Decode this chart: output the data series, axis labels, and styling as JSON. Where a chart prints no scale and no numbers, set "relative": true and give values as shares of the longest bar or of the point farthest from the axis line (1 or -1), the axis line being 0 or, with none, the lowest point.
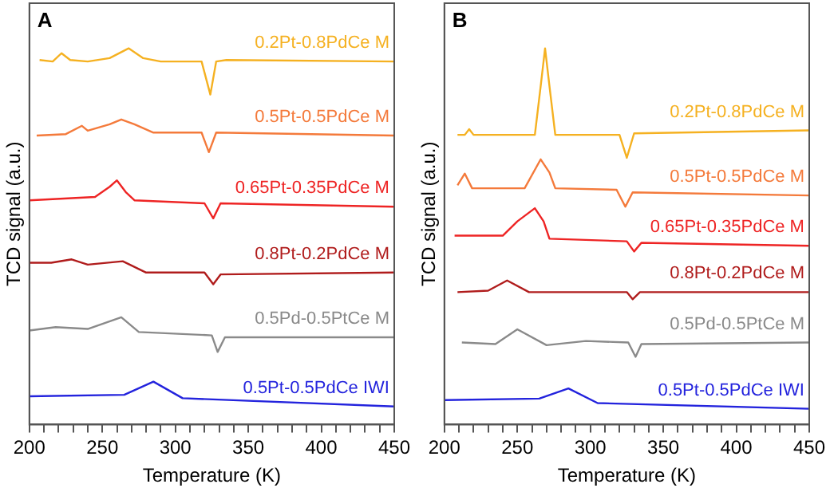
{
  "chart_data": [
    {
      "type": "line",
      "title": "A",
      "xlabel": "Temperature (K)",
      "ylabel": "TCD signal (a.u.)",
      "relative": true,
      "legend": false,
      "marker": "none",
      "grid": false,
      "xlim": [
        200,
        450
      ],
      "xticks": [
        200,
        {
          "value": 210,
          "label": null
        },
        {
          "value": 220,
          "label": null
        },
        {
          "value": 230,
          "label": null
        },
        {
          "value": 240,
          "label": null
        },
        250,
        {
          "value": 260,
          "label": null
        },
        {
          "value": 270,
          "label": null
        },
        {
          "value": 280,
          "label": null
        },
        {
          "value": 290,
          "label": null
        },
        300,
        {
          "value": 310,
          "label": null
        },
        {
          "value": 320,
          "label": null
        },
        {
          "value": 330,
          "label": null
        },
        {
          "value": 340,
          "label": null
        },
        350,
        {
          "value": 360,
          "label": null
        },
        {
          "value": 370,
          "label": null
        },
        {
          "value": 380,
          "label": null
        },
        {
          "value": 390,
          "label": null
        },
        400,
        {
          "value": 410,
          "label": null
        },
        {
          "value": 420,
          "label": null
        },
        {
          "value": 430,
          "label": null
        },
        {
          "value": 440,
          "label": null
        },
        450
      ],
      "series": [
        {
          "name": "0.2Pt-0.8PdCe M",
          "color": "#f5b121",
          "x": [
            207,
            216,
            222,
            228,
            240,
            255,
            268,
            278,
            290,
            318,
            324,
            328,
            335,
            450
          ],
          "values": [
            0.969,
            0.965,
            0.987,
            0.969,
            0.965,
            0.974,
            1.0,
            0.974,
            0.965,
            0.965,
            0.877,
            0.965,
            0.969,
            0.965
          ]
        },
        {
          "name": "0.5Pt-0.5PdCe M",
          "color": "#f47a3b",
          "x": [
            205,
            225,
            236,
            240,
            255,
            263,
            272,
            285,
            318,
            323,
            328,
            450
          ],
          "values": [
            0.768,
            0.772,
            0.794,
            0.781,
            0.798,
            0.811,
            0.798,
            0.776,
            0.776,
            0.724,
            0.776,
            0.768
          ]
        },
        {
          "name": "0.65Pt-0.35PdCe M",
          "color": "#ee2424",
          "x": [
            200,
            245,
            255,
            260,
            266,
            272,
            320,
            326,
            331,
            450
          ],
          "values": [
            0.596,
            0.605,
            0.632,
            0.649,
            0.618,
            0.596,
            0.588,
            0.548,
            0.588,
            0.579
          ]
        },
        {
          "name": "0.8Pt-0.2PdCe M",
          "color": "#b01c1c",
          "x": [
            200,
            215,
            229,
            240,
            264,
            280,
            320,
            326,
            331,
            450
          ],
          "values": [
            0.43,
            0.43,
            0.439,
            0.425,
            0.434,
            0.404,
            0.404,
            0.373,
            0.399,
            0.404
          ]
        },
        {
          "name": "0.5Pd-0.5PtCe M",
          "color": "#8a8a8a",
          "x": [
            200,
            218,
            240,
            263,
            275,
            325,
            329,
            334,
            450
          ],
          "values": [
            0.25,
            0.259,
            0.254,
            0.285,
            0.246,
            0.237,
            0.193,
            0.232,
            0.232
          ]
        },
        {
          "name": "0.5Pt-0.5PdCe IWI",
          "color": "#2323dd",
          "x": [
            200,
            265,
            285,
            305,
            450
          ],
          "values": [
            0.075,
            0.079,
            0.114,
            0.07,
            0.048
          ]
        }
      ]
    },
    {
      "type": "line",
      "title": "B",
      "xlabel": "Temperature (K)",
      "ylabel": "TCD signal (a.u.)",
      "relative": true,
      "legend": false,
      "marker": "none",
      "grid": false,
      "xlim": [
        200,
        450
      ],
      "xticks": [
        200,
        {
          "value": 210,
          "label": null
        },
        {
          "value": 220,
          "label": null
        },
        {
          "value": 230,
          "label": null
        },
        {
          "value": 240,
          "label": null
        },
        250,
        {
          "value": 260,
          "label": null
        },
        {
          "value": 270,
          "label": null
        },
        {
          "value": 280,
          "label": null
        },
        {
          "value": 290,
          "label": null
        },
        300,
        {
          "value": 310,
          "label": null
        },
        {
          "value": 320,
          "label": null
        },
        {
          "value": 330,
          "label": null
        },
        {
          "value": 340,
          "label": null
        },
        350,
        {
          "value": 360,
          "label": null
        },
        {
          "value": 370,
          "label": null
        },
        {
          "value": 380,
          "label": null
        },
        {
          "value": 390,
          "label": null
        },
        400,
        {
          "value": 410,
          "label": null
        },
        {
          "value": 420,
          "label": null
        },
        {
          "value": 430,
          "label": null
        },
        {
          "value": 440,
          "label": null
        },
        450
      ],
      "series": [
        {
          "name": "0.2Pt-0.8PdCe M",
          "color": "#f5b121",
          "x": [
            209,
            214,
            217,
            220,
            262,
            266,
            269,
            272,
            276,
            320,
            325,
            330,
            450
          ],
          "values": [
            0.77,
            0.77,
            0.785,
            0.77,
            0.77,
            0.9,
            1.0,
            0.9,
            0.77,
            0.77,
            0.709,
            0.774,
            0.782
          ]
        },
        {
          "name": "0.5Pt-0.5PdCe M",
          "color": "#f47a3b",
          "x": [
            209,
            214,
            219,
            255,
            266,
            272,
            276,
            318,
            324,
            329,
            450
          ],
          "values": [
            0.636,
            0.667,
            0.628,
            0.628,
            0.705,
            0.67,
            0.628,
            0.624,
            0.579,
            0.617,
            0.609
          ]
        },
        {
          "name": "0.65Pt-0.35PdCe M",
          "color": "#ee2424",
          "x": [
            207,
            240,
            250,
            262,
            268,
            272,
            325,
            330,
            335,
            450
          ],
          "values": [
            0.502,
            0.502,
            0.54,
            0.575,
            0.54,
            0.494,
            0.487,
            0.46,
            0.483,
            0.475
          ]
        },
        {
          "name": "0.8Pt-0.2PdCe M",
          "color": "#b01c1c",
          "x": [
            209,
            230,
            243,
            258,
            325,
            329,
            334,
            450
          ],
          "values": [
            0.352,
            0.356,
            0.383,
            0.352,
            0.352,
            0.333,
            0.352,
            0.352
          ]
        },
        {
          "name": "0.5Pd-0.5PtCe M",
          "color": "#8a8a8a",
          "x": [
            212,
            235,
            250,
            270,
            297,
            326,
            331,
            335,
            450
          ],
          "values": [
            0.218,
            0.214,
            0.253,
            0.211,
            0.222,
            0.218,
            0.18,
            0.214,
            0.218
          ]
        },
        {
          "name": "0.5Pt-0.5PdCe IWI",
          "color": "#2323dd",
          "x": [
            200,
            265,
            285,
            305,
            450
          ],
          "values": [
            0.065,
            0.069,
            0.096,
            0.057,
            0.042
          ]
        }
      ]
    }
  ]
}
